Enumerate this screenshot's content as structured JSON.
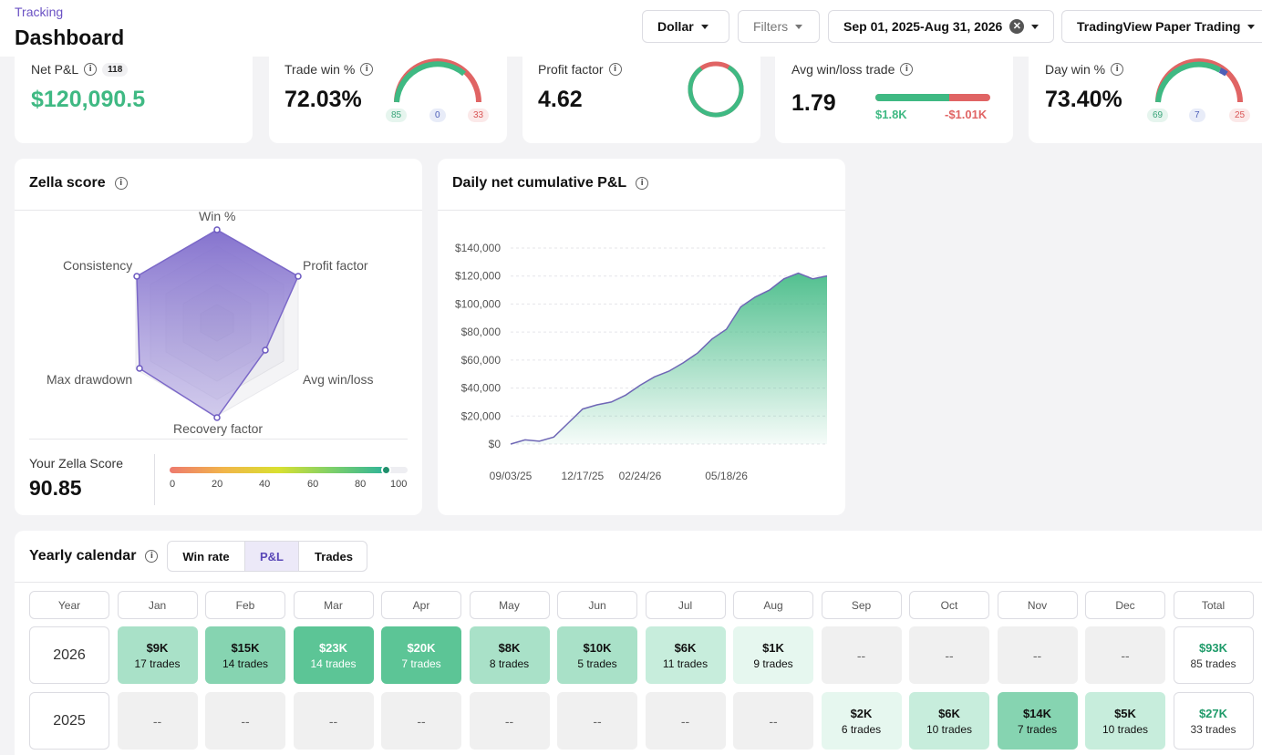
{
  "header": {
    "breadcrumb": "Tracking",
    "title": "Dashboard",
    "currency": "Dollar",
    "filters": "Filters",
    "date_range": "Sep 01, 2025-Aug 31, 2026",
    "account": "TradingView Paper Trading"
  },
  "stats": {
    "net_pnl": {
      "label": "Net P&L",
      "value": "$120,090.5",
      "count": "118"
    },
    "trade_win": {
      "label": "Trade win %",
      "value": "72.03%",
      "wins": "85",
      "breakeven": "0",
      "losses": "33"
    },
    "profit_factor": {
      "label": "Profit factor",
      "value": "4.62"
    },
    "avg_win_loss": {
      "label": "Avg win/loss trade",
      "value": "1.79",
      "avg_win": "$1.8K",
      "avg_loss": "-$1.01K"
    },
    "day_win": {
      "label": "Day win %",
      "value": "73.40%",
      "wins": "69",
      "breakeven": "7",
      "losses": "25"
    }
  },
  "zella": {
    "title": "Zella score",
    "axes": [
      "Win %",
      "Profit factor",
      "Avg win/loss",
      "Recovery factor",
      "Max drawdown",
      "Consistency"
    ],
    "score_label": "Your Zella Score",
    "score": "90.85",
    "scale_ticks": [
      "0",
      "20",
      "40",
      "60",
      "80",
      "100"
    ]
  },
  "pnl_chart": {
    "title": "Daily net cumulative P&L"
  },
  "chart_data": {
    "type": "area",
    "title": "Daily net cumulative P&L",
    "xlabel": "",
    "ylabel": "",
    "x_ticks": [
      "09/03/25",
      "12/17/25",
      "02/24/26",
      "05/18/26"
    ],
    "y_ticks": [
      "$0",
      "$20,000",
      "$40,000",
      "$60,000",
      "$80,000",
      "$100,000",
      "$120,000",
      "$140,000"
    ],
    "ylim": [
      0,
      140000
    ],
    "x": [
      "09/03/25",
      "09/20/25",
      "10/10/25",
      "10/30/25",
      "11/20/25",
      "12/17/25",
      "01/05/26",
      "01/25/26",
      "02/10/26",
      "02/24/26",
      "03/10/26",
      "03/25/26",
      "04/10/26",
      "04/25/26",
      "05/05/26",
      "05/18/26",
      "06/01/26",
      "06/15/26",
      "06/25/26",
      "07/10/26",
      "07/25/26",
      "08/10/26",
      "08/31/26"
    ],
    "values": [
      0,
      3000,
      2000,
      5000,
      15000,
      25000,
      28000,
      30000,
      35000,
      42000,
      48000,
      52000,
      58000,
      65000,
      75000,
      82000,
      98000,
      105000,
      110000,
      118000,
      122000,
      118000,
      120090
    ],
    "grid": true
  },
  "calendar": {
    "title": "Yearly calendar",
    "tabs": [
      "Win rate",
      "P&L",
      "Trades"
    ],
    "active_tab": "P&L",
    "year_header": "Year",
    "months": [
      "Jan",
      "Feb",
      "Mar",
      "Apr",
      "May",
      "Jun",
      "Jul",
      "Aug",
      "Sep",
      "Oct",
      "Nov",
      "Dec"
    ],
    "total_header": "Total",
    "rows": [
      {
        "year": "2026",
        "cells": [
          {
            "amt": "$9K",
            "trades": "17 trades",
            "level": 2
          },
          {
            "amt": "$15K",
            "trades": "14 trades",
            "level": 3
          },
          {
            "amt": "$23K",
            "trades": "14 trades",
            "level": 4
          },
          {
            "amt": "$20K",
            "trades": "7 trades",
            "level": 4
          },
          {
            "amt": "$8K",
            "trades": "8 trades",
            "level": 2
          },
          {
            "amt": "$10K",
            "trades": "5 trades",
            "level": 2
          },
          {
            "amt": "$6K",
            "trades": "11 trades",
            "level": 1
          },
          {
            "amt": "$1K",
            "trades": "9 trades",
            "level": 0
          },
          {
            "amt": "--",
            "trades": "",
            "level": -1
          },
          {
            "amt": "--",
            "trades": "",
            "level": -1
          },
          {
            "amt": "--",
            "trades": "",
            "level": -1
          },
          {
            "amt": "--",
            "trades": "",
            "level": -1
          }
        ],
        "total": {
          "amt": "$93K",
          "trades": "85 trades"
        }
      },
      {
        "year": "2025",
        "cells": [
          {
            "amt": "--",
            "trades": "",
            "level": -1
          },
          {
            "amt": "--",
            "trades": "",
            "level": -1
          },
          {
            "amt": "--",
            "trades": "",
            "level": -1
          },
          {
            "amt": "--",
            "trades": "",
            "level": -1
          },
          {
            "amt": "--",
            "trades": "",
            "level": -1
          },
          {
            "amt": "--",
            "trades": "",
            "level": -1
          },
          {
            "amt": "--",
            "trades": "",
            "level": -1
          },
          {
            "amt": "--",
            "trades": "",
            "level": -1
          },
          {
            "amt": "$2K",
            "trades": "6 trades",
            "level": 0
          },
          {
            "amt": "$6K",
            "trades": "10 trades",
            "level": 1
          },
          {
            "amt": "$14K",
            "trades": "7 trades",
            "level": 3
          },
          {
            "amt": "$5K",
            "trades": "10 trades",
            "level": 1
          }
        ],
        "total": {
          "amt": "$27K",
          "trades": "33 trades"
        }
      }
    ]
  },
  "colors": {
    "profit": "#3fb983",
    "loss": "#e06464",
    "accent": "#7b68c8"
  }
}
